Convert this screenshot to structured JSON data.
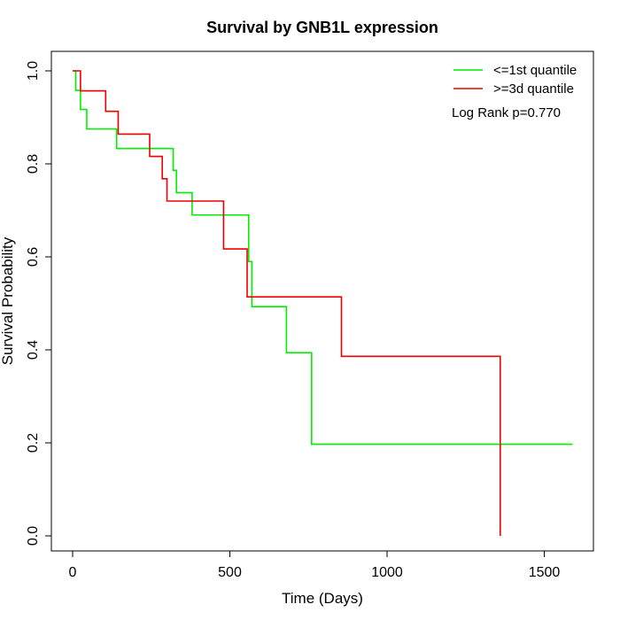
{
  "chart_data": {
    "type": "line",
    "title": "Survival by GNB1L expression",
    "xlabel": "Time (Days)",
    "ylabel": "Survival Probability",
    "xlim": [
      0,
      1650
    ],
    "ylim": [
      0,
      1.0
    ],
    "x_ticks": [
      0,
      500,
      1000,
      1500
    ],
    "y_ticks": [
      0.0,
      0.2,
      0.4,
      0.6,
      0.8,
      1.0
    ],
    "x_tick_labels": [
      "0",
      "500",
      "1000",
      "1500"
    ],
    "y_tick_labels": [
      "0.0",
      "0.2",
      "0.4",
      "0.6",
      "0.8",
      "1.0"
    ],
    "step": true,
    "legend_position": "top-right",
    "annotation": "Log Rank p=0.770",
    "series": [
      {
        "name": "<=1st quantile",
        "color": "#00ee00",
        "x": [
          0,
          10,
          25,
          45,
          140,
          320,
          330,
          380,
          560,
          570,
          680,
          760,
          1590
        ],
        "y": [
          1.0,
          0.958,
          0.917,
          0.875,
          0.833,
          0.786,
          0.738,
          0.69,
          0.59,
          0.493,
          0.394,
          0.197,
          0.197
        ]
      },
      {
        "name": ">=3d quantile",
        "color": "#ee0000",
        "x": [
          0,
          25,
          105,
          145,
          245,
          285,
          300,
          480,
          555,
          855,
          1360,
          1360
        ],
        "y": [
          1.0,
          0.957,
          0.913,
          0.864,
          0.816,
          0.768,
          0.72,
          0.617,
          0.514,
          0.386,
          0.386,
          0.0
        ]
      }
    ]
  }
}
